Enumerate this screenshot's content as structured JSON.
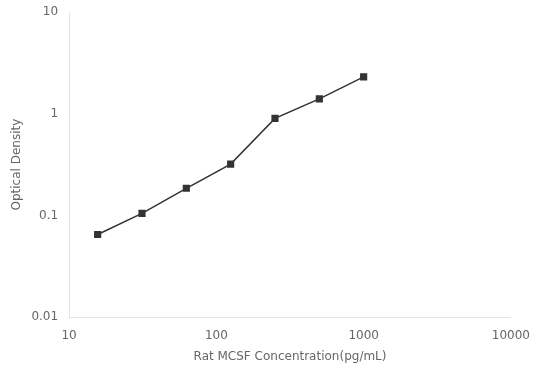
{
  "chart_data": {
    "type": "line",
    "x": [
      15.625,
      31.25,
      62.5,
      125,
      250,
      500,
      1000
    ],
    "values": [
      0.065,
      0.105,
      0.185,
      0.32,
      0.9,
      1.4,
      2.3
    ],
    "x_label": "Rat MCSF Concentration(pg/mL)",
    "y_label": "Optical Density",
    "xlim": [
      10,
      10000
    ],
    "ylim": [
      0.01,
      10
    ],
    "xticks": [
      10,
      100,
      1000,
      10000
    ],
    "yticks": [
      0.01,
      0.1,
      1,
      10
    ],
    "log": true,
    "grid": false,
    "color": "#333333",
    "marker": "square",
    "line_style": "solid"
  }
}
